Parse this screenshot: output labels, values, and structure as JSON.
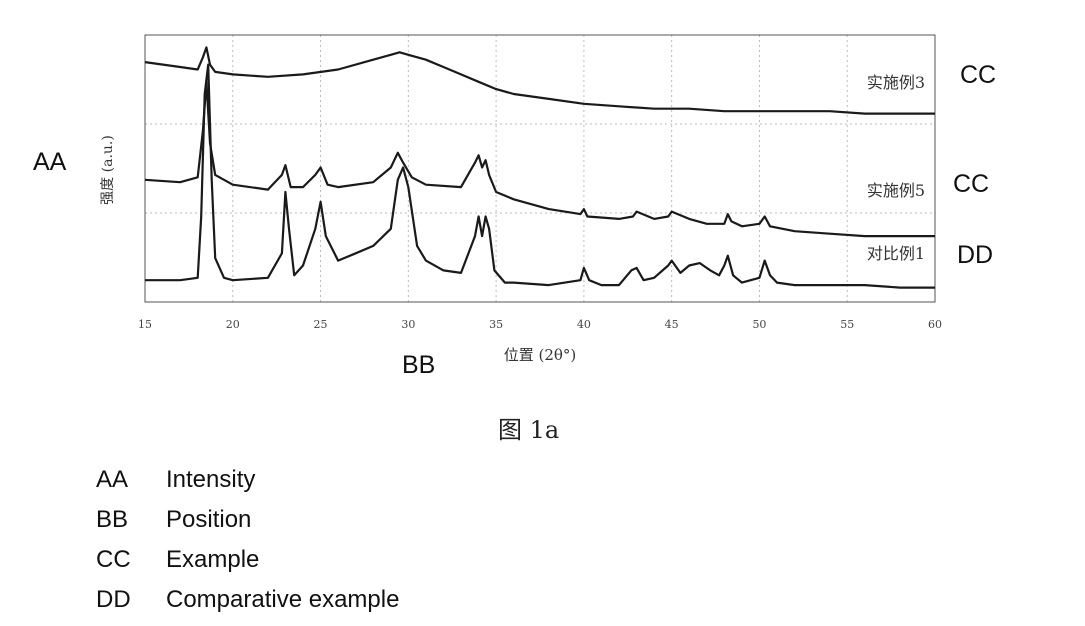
{
  "chart_data": {
    "type": "line",
    "title": "",
    "xlabel": "位置 (2θ°)",
    "ylabel": "强度 (a.u.)",
    "xlim": [
      15,
      60
    ],
    "xticks": [
      "15",
      "20",
      "25",
      "30",
      "35",
      "40",
      "45",
      "50",
      "55",
      "60"
    ],
    "grid": true,
    "series": [
      {
        "name": "实施例3",
        "x": [
          15,
          17,
          18,
          18.3,
          18.5,
          18.7,
          19,
          20,
          22,
          24,
          26,
          28,
          29,
          29.5,
          30,
          31,
          32,
          33,
          34,
          35,
          36,
          38,
          40,
          42,
          44,
          46,
          48,
          50,
          52,
          54,
          56,
          58,
          60
        ],
        "y": [
          0.93,
          0.91,
          0.9,
          0.95,
          0.99,
          0.92,
          0.89,
          0.88,
          0.87,
          0.88,
          0.9,
          0.94,
          0.96,
          0.97,
          0.96,
          0.94,
          0.91,
          0.88,
          0.85,
          0.82,
          0.8,
          0.78,
          0.76,
          0.75,
          0.74,
          0.74,
          0.73,
          0.73,
          0.73,
          0.73,
          0.72,
          0.72,
          0.72
        ]
      },
      {
        "name": "实施例5",
        "x": [
          15,
          17,
          18,
          18.3,
          18.5,
          18.7,
          19,
          20,
          22,
          22.8,
          23,
          23.3,
          24,
          24.7,
          25,
          25.4,
          26,
          28,
          29,
          29.4,
          29.7,
          30.2,
          31,
          33,
          33.8,
          34,
          34.2,
          34.4,
          34.6,
          35,
          36,
          38,
          39.8,
          40,
          40.2,
          42,
          42.8,
          43,
          44,
          44.8,
          45,
          46,
          47,
          48,
          48.2,
          48.4,
          49,
          50,
          50.3,
          50.6,
          52,
          54,
          56,
          58,
          60
        ],
        "y": [
          0.45,
          0.44,
          0.46,
          0.65,
          0.85,
          0.6,
          0.47,
          0.43,
          0.41,
          0.47,
          0.51,
          0.42,
          0.42,
          0.47,
          0.5,
          0.43,
          0.42,
          0.44,
          0.5,
          0.56,
          0.52,
          0.46,
          0.43,
          0.42,
          0.52,
          0.55,
          0.5,
          0.53,
          0.47,
          0.4,
          0.37,
          0.33,
          0.31,
          0.33,
          0.3,
          0.29,
          0.3,
          0.32,
          0.29,
          0.3,
          0.32,
          0.29,
          0.27,
          0.27,
          0.31,
          0.28,
          0.26,
          0.27,
          0.3,
          0.26,
          0.24,
          0.23,
          0.22,
          0.22,
          0.22
        ]
      },
      {
        "name": "对比例1",
        "x": [
          15,
          17,
          18,
          18.2,
          18.4,
          18.6,
          18.8,
          19,
          19.5,
          20,
          22,
          22.8,
          23,
          23.2,
          23.5,
          24,
          24.7,
          25,
          25.3,
          26,
          27,
          28,
          29,
          29.4,
          29.7,
          30,
          30.5,
          31,
          32,
          33,
          33.8,
          34,
          34.2,
          34.4,
          34.6,
          34.9,
          35.5,
          36,
          38,
          39.8,
          40,
          40.3,
          41,
          42,
          42.7,
          43,
          43.4,
          44,
          44.8,
          45,
          45.5,
          46,
          46.6,
          47.2,
          47.7,
          48,
          48.2,
          48.5,
          49,
          50,
          50.3,
          50.6,
          51,
          52,
          54,
          56,
          58,
          60
        ],
        "y": [
          0.04,
          0.04,
          0.05,
          0.3,
          0.8,
          0.92,
          0.45,
          0.13,
          0.05,
          0.04,
          0.05,
          0.15,
          0.4,
          0.25,
          0.06,
          0.1,
          0.25,
          0.36,
          0.22,
          0.12,
          0.15,
          0.18,
          0.25,
          0.45,
          0.5,
          0.42,
          0.18,
          0.12,
          0.08,
          0.07,
          0.22,
          0.3,
          0.22,
          0.3,
          0.25,
          0.08,
          0.03,
          0.03,
          0.02,
          0.04,
          0.09,
          0.04,
          0.02,
          0.02,
          0.08,
          0.09,
          0.04,
          0.05,
          0.1,
          0.12,
          0.07,
          0.1,
          0.11,
          0.08,
          0.06,
          0.1,
          0.14,
          0.06,
          0.03,
          0.05,
          0.12,
          0.06,
          0.03,
          0.02,
          0.02,
          0.02,
          0.01,
          0.01
        ]
      }
    ],
    "annotations": [
      "实施例3",
      "实施例5",
      "对比例1"
    ]
  },
  "labels": {
    "aa": "AA",
    "bb": "BB",
    "cc_top": "CC",
    "cc_mid": "CC",
    "dd": "DD"
  },
  "caption": "图 1a",
  "legend": [
    {
      "key": "AA",
      "value": "Intensity"
    },
    {
      "key": "BB",
      "value": "Position"
    },
    {
      "key": "CC",
      "value": "Example"
    },
    {
      "key": "DD",
      "value": "Comparative example"
    }
  ]
}
